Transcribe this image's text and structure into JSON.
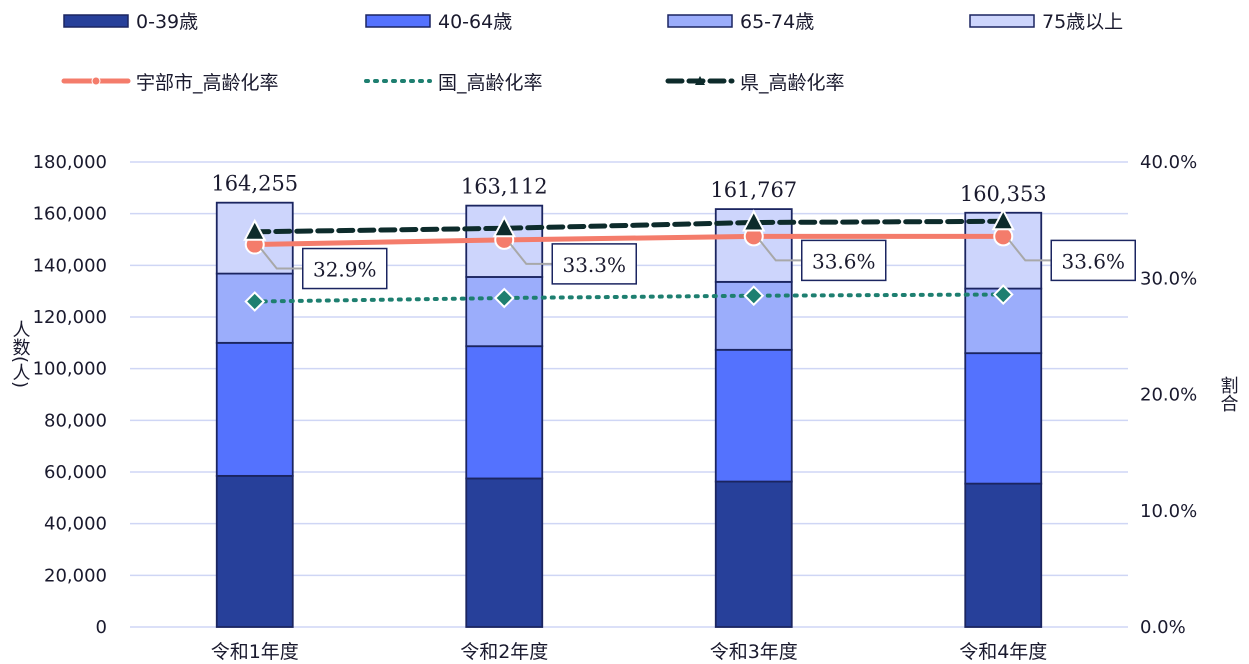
{
  "chart_data": {
    "type": "bar",
    "stacked": true,
    "categories": [
      "令和1年度",
      "令和2年度",
      "令和3年度",
      "令和4年度"
    ],
    "series": [
      {
        "name": "0-39歳",
        "values": [
          58500,
          57500,
          56300,
          55500
        ],
        "color": "#27409a"
      },
      {
        "name": "40-64歳",
        "values": [
          51500,
          51200,
          51000,
          50500
        ],
        "color": "#5472fe"
      },
      {
        "name": "65-74歳",
        "values": [
          26800,
          26800,
          26300,
          25000
        ],
        "color": "#9badfb"
      },
      {
        "name": "75歳以上",
        "values": [
          27455,
          27612,
          28167,
          29353
        ],
        "color": "#cdd5fc"
      }
    ],
    "totals": [
      "164,255",
      "163,112",
      "161,767",
      "160,353"
    ],
    "lines": [
      {
        "name": "宇部市_高齢化率",
        "values": [
          32.9,
          33.3,
          33.6,
          33.6
        ],
        "labels": [
          "32.9%",
          "33.3%",
          "33.6%",
          "33.6%"
        ],
        "color": "#f47c6b",
        "style": "solid",
        "marker": "circle"
      },
      {
        "name": "国_高齢化率",
        "values": [
          28.0,
          28.3,
          28.5,
          28.6
        ],
        "color": "#1e7f70",
        "style": "dotted",
        "marker": "diamond"
      },
      {
        "name": "県_高齢化率",
        "values": [
          34.0,
          34.3,
          34.8,
          34.9
        ],
        "color": "#0d2b2b",
        "style": "dashed",
        "marker": "triangle"
      }
    ],
    "y_left": {
      "label": "人数(人)",
      "min": 0,
      "max": 180000,
      "step": 20000,
      "ticks": [
        "0",
        "20,000",
        "40,000",
        "60,000",
        "80,000",
        "100,000",
        "120,000",
        "140,000",
        "160,000",
        "180,000"
      ]
    },
    "y_right": {
      "label": "割合",
      "min": 0,
      "max": 40,
      "step": 10,
      "ticks": [
        "0.0%",
        "10.0%",
        "20.0%",
        "30.0%",
        "40.0%"
      ]
    },
    "grid": true,
    "legend_position": "top"
  }
}
